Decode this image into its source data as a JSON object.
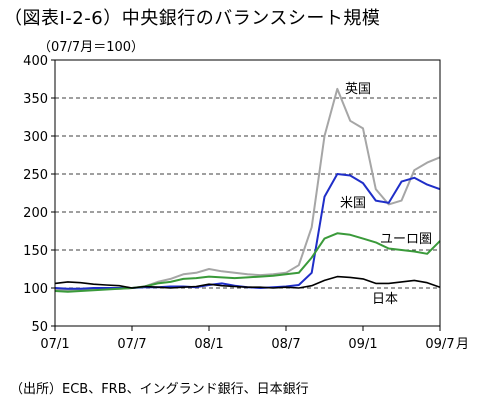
{
  "header": {
    "title": "（図表Ⅰ-2-6）中央銀行のバランスシート規模",
    "unit": "（07/7月＝100）"
  },
  "footer": {
    "source": "（出所）ECB、FRB、イングランド銀行、日本銀行"
  },
  "chart_data": {
    "type": "line",
    "x_tick_labels": [
      "07/1",
      "07/7",
      "08/1",
      "08/7",
      "09/1",
      "09/7"
    ],
    "x_unit_label": "月",
    "ylim": [
      50,
      400
    ],
    "y_ticks": [
      50,
      100,
      150,
      200,
      250,
      300,
      350,
      400
    ],
    "grid": "horizontal dashed",
    "x": [
      "2007-01",
      "2007-02",
      "2007-03",
      "2007-04",
      "2007-05",
      "2007-06",
      "2007-07",
      "2007-08",
      "2007-09",
      "2007-10",
      "2007-11",
      "2007-12",
      "2008-01",
      "2008-02",
      "2008-03",
      "2008-04",
      "2008-05",
      "2008-06",
      "2008-07",
      "2008-08",
      "2008-09",
      "2008-10",
      "2008-11",
      "2008-12",
      "2009-01",
      "2009-02",
      "2009-03",
      "2009-04",
      "2009-05",
      "2009-06",
      "2009-07"
    ],
    "series": [
      {
        "name": "英国",
        "color": "#a6a6a6",
        "values": [
          98,
          97,
          97,
          98,
          99,
          99,
          100,
          102,
          108,
          112,
          118,
          120,
          125,
          122,
          120,
          118,
          117,
          118,
          120,
          130,
          180,
          300,
          362,
          320,
          310,
          230,
          210,
          215,
          255,
          265,
          272
        ]
      },
      {
        "name": "米国",
        "color": "#1f2ec8",
        "values": [
          100,
          99,
          99,
          100,
          100,
          100,
          100,
          101,
          101,
          102,
          102,
          101,
          104,
          106,
          103,
          101,
          100,
          101,
          102,
          104,
          120,
          220,
          250,
          248,
          238,
          215,
          212,
          240,
          245,
          236,
          230
        ]
      },
      {
        "name": "ユーロ圏",
        "color": "#3a9a3a",
        "values": [
          96,
          95,
          96,
          97,
          98,
          99,
          100,
          102,
          106,
          108,
          112,
          113,
          115,
          114,
          113,
          114,
          115,
          116,
          118,
          120,
          140,
          165,
          172,
          170,
          165,
          160,
          152,
          150,
          148,
          145,
          162
        ]
      },
      {
        "name": "日本",
        "color": "#000000",
        "values": [
          106,
          108,
          107,
          105,
          104,
          103,
          100,
          102,
          101,
          100,
          101,
          102,
          105,
          103,
          102,
          101,
          101,
          100,
          101,
          100,
          103,
          110,
          115,
          114,
          112,
          106,
          106,
          108,
          110,
          107,
          101
        ]
      }
    ]
  }
}
